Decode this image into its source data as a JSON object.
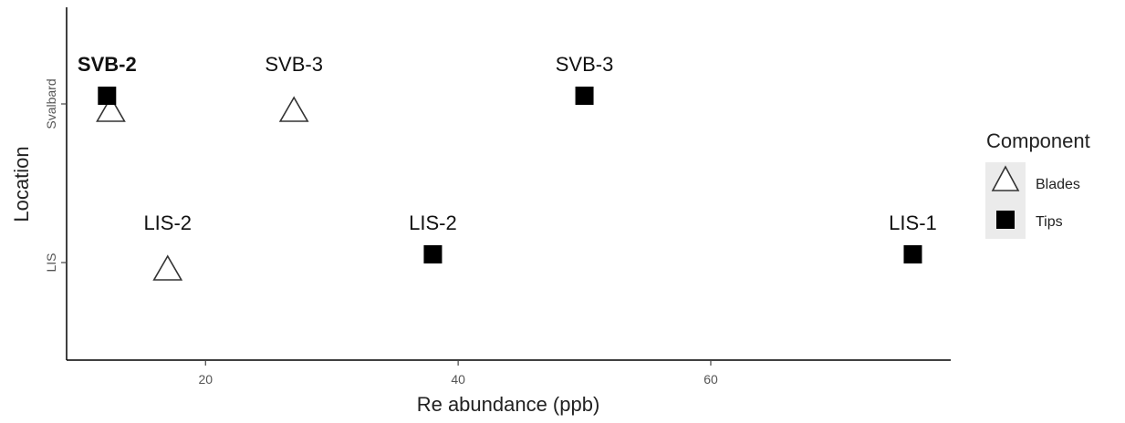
{
  "chart_data": {
    "type": "scatter",
    "xlabel": "Re abundance (ppb)",
    "ylabel": "Location",
    "categories": [
      "LIS",
      "Svalbard"
    ],
    "x_ticks": [
      20,
      40,
      60
    ],
    "xlim": [
      9,
      79
    ],
    "grid": false,
    "legend": {
      "title": "Component",
      "position": "right",
      "entries": [
        {
          "name": "Blades",
          "shape": "open-triangle"
        },
        {
          "name": "Tips",
          "shape": "filled-square"
        }
      ]
    },
    "series": [
      {
        "name": "Blades",
        "points": [
          {
            "x": 12.5,
            "y": "Svalbard",
            "label": ""
          },
          {
            "x": 27,
            "y": "Svalbard",
            "label": "SVB-3"
          },
          {
            "x": 17,
            "y": "LIS",
            "label": "LIS-2"
          }
        ]
      },
      {
        "name": "Tips",
        "points": [
          {
            "x": 12.2,
            "y": "Svalbard",
            "label": "SVB-2",
            "bold": true
          },
          {
            "x": 50,
            "y": "Svalbard",
            "label": "SVB-3"
          },
          {
            "x": 38,
            "y": "LIS",
            "label": "LIS-2"
          },
          {
            "x": 76,
            "y": "LIS",
            "label": "LIS-1"
          }
        ]
      }
    ]
  }
}
